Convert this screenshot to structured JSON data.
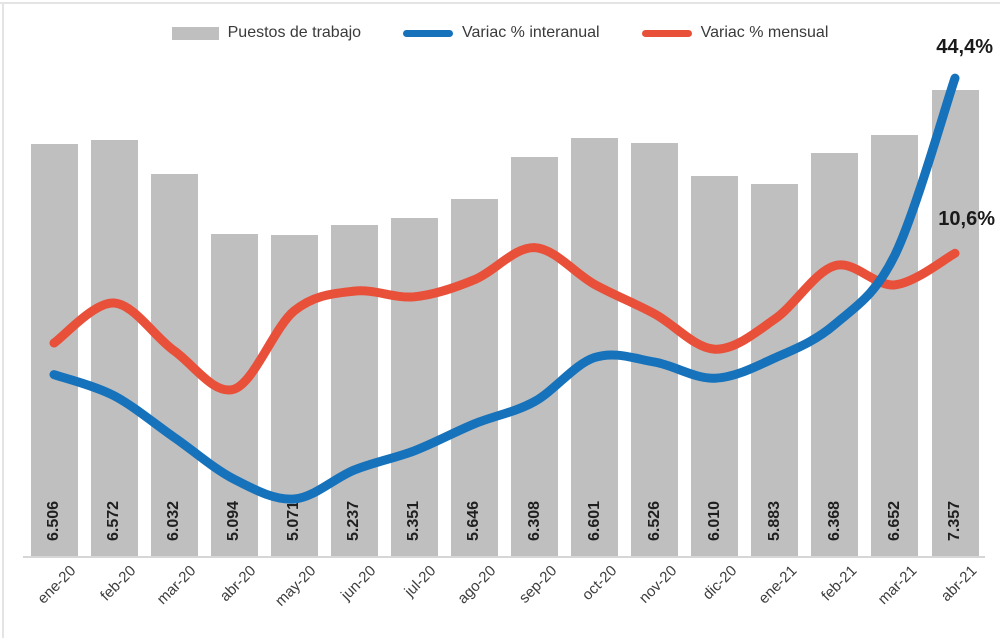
{
  "chart_data": {
    "type": "bar",
    "subtype": "combo-bar-line",
    "title": "",
    "xlabel": "",
    "ylabel": "",
    "grid": false,
    "legend_position": "top",
    "categories": [
      "ene-20",
      "feb-20",
      "mar-20",
      "abr-20",
      "may-20",
      "jun-20",
      "jul-20",
      "ago-20",
      "sep-20",
      "oct-20",
      "nov-20",
      "dic-20",
      "ene-21",
      "feb-21",
      "mar-21",
      "abr-21"
    ],
    "series": [
      {
        "name": "Puestos de trabajo",
        "type": "bar",
        "axis": "primary",
        "color": "#bfbfbf",
        "values": [
          6506,
          6572,
          6032,
          5094,
          5071,
          5237,
          5351,
          5646,
          6308,
          6601,
          6526,
          6010,
          5883,
          6368,
          6652,
          7357
        ],
        "value_labels": [
          "6.506",
          "6.572",
          "6.032",
          "5.094",
          "5.071",
          "5.237",
          "5.351",
          "5.646",
          "6.308",
          "6.601",
          "6.526",
          "6.010",
          "5.883",
          "6.368",
          "6.652",
          "7.357"
        ]
      },
      {
        "name": "Variac % interanual",
        "type": "line",
        "axis": "secondary",
        "units": "%",
        "color": "#1672bb",
        "values": [
          -12.8,
          -16.9,
          -24.9,
          -33.0,
          -36.8,
          -31.2,
          -27.5,
          -22.3,
          -18.0,
          -9.5,
          -10.4,
          -13.5,
          -9.6,
          -3.1,
          10.3,
          44.4
        ]
      },
      {
        "name": "Variac % mensual",
        "type": "line",
        "axis": "secondary",
        "units": "%",
        "color": "#e8503a",
        "values": [
          -6.7,
          1.0,
          -8.2,
          -15.6,
          -0.5,
          3.3,
          2.2,
          5.5,
          11.7,
          4.6,
          -1.1,
          -7.9,
          -2.1,
          8.2,
          4.5,
          10.6
        ]
      }
    ],
    "annotations": [
      {
        "text": "44,4%",
        "series": "Variac % interanual",
        "category": "abr-21"
      },
      {
        "text": "10,6%",
        "series": "Variac % mensual",
        "category": "abr-21"
      }
    ],
    "primary_axis": {
      "min": 0,
      "max": 7600,
      "visible": false
    },
    "secondary_axis": {
      "min": -48,
      "max": 45,
      "visible": false
    }
  }
}
